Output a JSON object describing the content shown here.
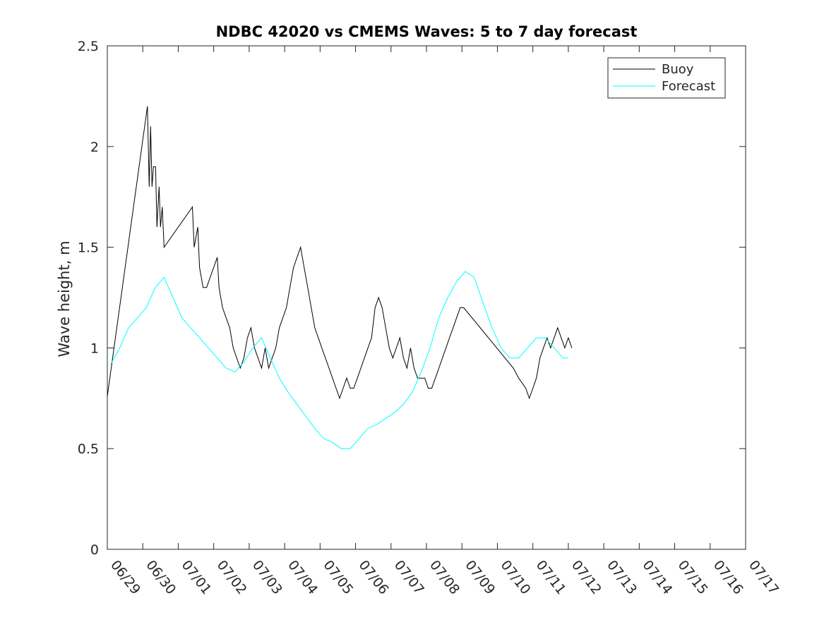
{
  "chart_data": {
    "type": "line",
    "title": "NDBC 42020 vs CMEMS Waves: 5 to 7 day forecast",
    "xlabel": "",
    "ylabel": "Wave height, m",
    "x_unit": "date (MM/DD)",
    "xlim": [
      "06/29",
      "07/17"
    ],
    "ylim": [
      0,
      2.5
    ],
    "x_ticks": [
      "06/29",
      "06/30",
      "07/01",
      "07/02",
      "07/03",
      "07/04",
      "07/05",
      "07/06",
      "07/07",
      "07/08",
      "07/09",
      "07/10",
      "07/11",
      "07/12",
      "07/13",
      "07/14",
      "07/15",
      "07/16",
      "07/17"
    ],
    "y_ticks": [
      "0",
      "0.5",
      "1",
      "1.5",
      "2",
      "2.5"
    ],
    "grid": false,
    "legend_position": "top-right",
    "colors": {
      "buoy": "#000000",
      "forecast": "#00ffff",
      "axes": "#262626"
    },
    "series": [
      {
        "name": "Buoy",
        "points": [
          [
            0,
            0.76
          ],
          [
            1.13,
            2.2
          ],
          [
            1.18,
            1.8
          ],
          [
            1.22,
            2.1
          ],
          [
            1.26,
            1.8
          ],
          [
            1.3,
            1.9
          ],
          [
            1.36,
            1.9
          ],
          [
            1.4,
            1.6
          ],
          [
            1.46,
            1.8
          ],
          [
            1.5,
            1.6
          ],
          [
            1.55,
            1.7
          ],
          [
            1.6,
            1.5
          ],
          [
            2.4,
            1.7
          ],
          [
            2.45,
            1.5
          ],
          [
            2.55,
            1.6
          ],
          [
            2.6,
            1.4
          ],
          [
            2.7,
            1.3
          ],
          [
            2.8,
            1.3
          ],
          [
            2.9,
            1.35
          ],
          [
            3.0,
            1.4
          ],
          [
            3.1,
            1.45
          ],
          [
            3.15,
            1.3
          ],
          [
            3.25,
            1.2
          ],
          [
            3.35,
            1.15
          ],
          [
            3.45,
            1.1
          ],
          [
            3.55,
            1.0
          ],
          [
            3.65,
            0.95
          ],
          [
            3.75,
            0.9
          ],
          [
            3.85,
            0.95
          ],
          [
            3.95,
            1.05
          ],
          [
            4.05,
            1.1
          ],
          [
            4.15,
            1.0
          ],
          [
            4.25,
            0.95
          ],
          [
            4.35,
            0.9
          ],
          [
            4.45,
            1.0
          ],
          [
            4.55,
            0.9
          ],
          [
            4.65,
            0.95
          ],
          [
            4.75,
            1.0
          ],
          [
            4.85,
            1.1
          ],
          [
            4.95,
            1.15
          ],
          [
            5.05,
            1.2
          ],
          [
            5.15,
            1.3
          ],
          [
            5.25,
            1.4
          ],
          [
            5.35,
            1.45
          ],
          [
            5.45,
            1.5
          ],
          [
            5.55,
            1.4
          ],
          [
            5.65,
            1.3
          ],
          [
            5.75,
            1.2
          ],
          [
            5.85,
            1.1
          ],
          [
            5.95,
            1.05
          ],
          [
            6.05,
            1.0
          ],
          [
            6.15,
            0.95
          ],
          [
            6.25,
            0.9
          ],
          [
            6.35,
            0.85
          ],
          [
            6.45,
            0.8
          ],
          [
            6.55,
            0.75
          ],
          [
            6.65,
            0.8
          ],
          [
            6.75,
            0.85
          ],
          [
            6.85,
            0.8
          ],
          [
            6.95,
            0.8
          ],
          [
            7.05,
            0.85
          ],
          [
            7.15,
            0.9
          ],
          [
            7.25,
            0.95
          ],
          [
            7.35,
            1.0
          ],
          [
            7.45,
            1.05
          ],
          [
            7.55,
            1.2
          ],
          [
            7.65,
            1.25
          ],
          [
            7.75,
            1.2
          ],
          [
            7.85,
            1.1
          ],
          [
            7.95,
            1.0
          ],
          [
            8.05,
            0.95
          ],
          [
            8.15,
            1.0
          ],
          [
            8.25,
            1.05
          ],
          [
            8.35,
            0.95
          ],
          [
            8.45,
            0.9
          ],
          [
            8.55,
            1.0
          ],
          [
            8.65,
            0.9
          ],
          [
            8.75,
            0.85
          ],
          [
            8.85,
            0.85
          ],
          [
            8.95,
            0.85
          ],
          [
            9.05,
            0.8
          ],
          [
            9.15,
            0.8
          ],
          [
            9.25,
            0.85
          ],
          [
            9.35,
            0.9
          ],
          [
            9.45,
            0.95
          ],
          [
            9.55,
            1.0
          ],
          [
            9.65,
            1.05
          ],
          [
            9.75,
            1.1
          ],
          [
            9.85,
            1.15
          ],
          [
            9.95,
            1.2
          ],
          [
            10.05,
            1.2
          ],
          [
            11.45,
            0.9
          ],
          [
            11.6,
            0.85
          ],
          [
            11.8,
            0.8
          ],
          [
            11.9,
            0.75
          ],
          [
            12.0,
            0.8
          ],
          [
            12.1,
            0.85
          ],
          [
            12.2,
            0.95
          ],
          [
            12.3,
            1.0
          ],
          [
            12.4,
            1.05
          ],
          [
            12.5,
            1.0
          ],
          [
            12.6,
            1.05
          ],
          [
            12.7,
            1.1
          ],
          [
            12.8,
            1.05
          ],
          [
            12.9,
            1.0
          ],
          [
            13.0,
            1.05
          ],
          [
            13.1,
            1.0
          ]
        ]
      },
      {
        "name": "Forecast",
        "points": [
          [
            0.1,
            0.92
          ],
          [
            0.35,
            1.0
          ],
          [
            0.6,
            1.1
          ],
          [
            0.85,
            1.15
          ],
          [
            1.1,
            1.2
          ],
          [
            1.35,
            1.3
          ],
          [
            1.6,
            1.35
          ],
          [
            1.85,
            1.25
          ],
          [
            2.1,
            1.15
          ],
          [
            2.35,
            1.1
          ],
          [
            2.6,
            1.05
          ],
          [
            2.85,
            1.0
          ],
          [
            3.1,
            0.95
          ],
          [
            3.35,
            0.9
          ],
          [
            3.6,
            0.88
          ],
          [
            3.85,
            0.93
          ],
          [
            4.1,
            1.0
          ],
          [
            4.35,
            1.05
          ],
          [
            4.6,
            0.95
          ],
          [
            4.85,
            0.85
          ],
          [
            5.1,
            0.78
          ],
          [
            5.35,
            0.72
          ],
          [
            5.6,
            0.66
          ],
          [
            5.85,
            0.6
          ],
          [
            6.1,
            0.55
          ],
          [
            6.35,
            0.53
          ],
          [
            6.6,
            0.5
          ],
          [
            6.85,
            0.5
          ],
          [
            7.1,
            0.55
          ],
          [
            7.35,
            0.6
          ],
          [
            7.6,
            0.62
          ],
          [
            7.85,
            0.65
          ],
          [
            8.1,
            0.68
          ],
          [
            8.35,
            0.72
          ],
          [
            8.6,
            0.78
          ],
          [
            8.85,
            0.88
          ],
          [
            9.1,
            1.0
          ],
          [
            9.35,
            1.15
          ],
          [
            9.6,
            1.25
          ],
          [
            9.85,
            1.33
          ],
          [
            10.1,
            1.38
          ],
          [
            10.35,
            1.35
          ],
          [
            10.6,
            1.22
          ],
          [
            10.85,
            1.1
          ],
          [
            11.1,
            1.0
          ],
          [
            11.35,
            0.95
          ],
          [
            11.6,
            0.95
          ],
          [
            11.85,
            1.0
          ],
          [
            12.1,
            1.05
          ],
          [
            12.35,
            1.05
          ],
          [
            12.6,
            1.0
          ],
          [
            12.85,
            0.95
          ],
          [
            13.0,
            0.95
          ]
        ]
      }
    ]
  }
}
